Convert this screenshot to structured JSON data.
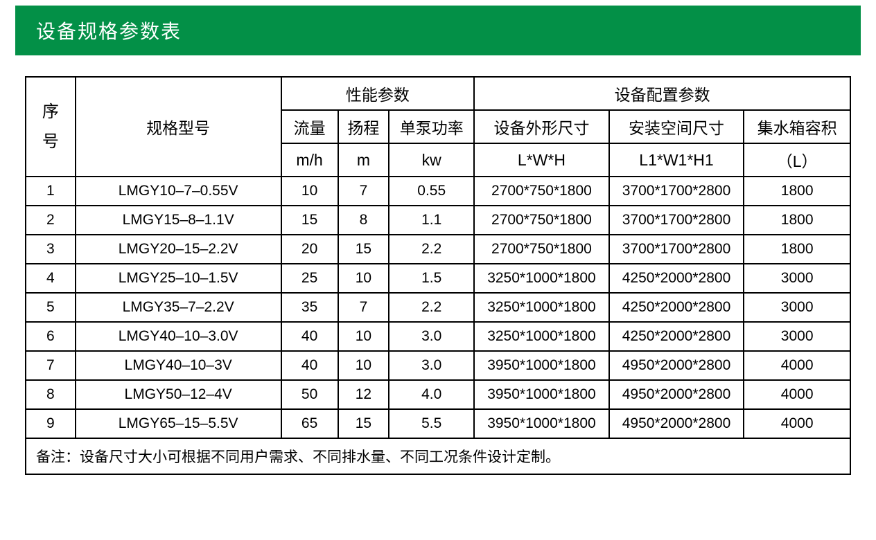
{
  "title": "设备规格参数表",
  "headers": {
    "seq1": "序",
    "seq2": "号",
    "model": "规格型号",
    "perf_group": "性能参数",
    "config_group": "设备配置参数",
    "flow": "流量",
    "head": "扬程",
    "power": "单泵功率",
    "outer_size": "设备外形尺寸",
    "install_size": "安装空间尺寸",
    "tank": "集水箱容积",
    "flow_unit": "m/h",
    "head_unit": "m",
    "power_unit": "kw",
    "outer_unit": "L*W*H",
    "install_unit": "L1*W1*H1",
    "tank_unit": "（L）"
  },
  "rows": [
    {
      "seq": "1",
      "model": "LMGY10–7–0.55V",
      "flow": "10",
      "head": "7",
      "power": "0.55",
      "outer": "2700*750*1800",
      "install": "3700*1700*2800",
      "tank": "1800"
    },
    {
      "seq": "2",
      "model": "LMGY15–8–1.1V",
      "flow": "15",
      "head": "8",
      "power": "1.1",
      "outer": "2700*750*1800",
      "install": "3700*1700*2800",
      "tank": "1800"
    },
    {
      "seq": "3",
      "model": "LMGY20–15–2.2V",
      "flow": "20",
      "head": "15",
      "power": "2.2",
      "outer": "2700*750*1800",
      "install": "3700*1700*2800",
      "tank": "1800"
    },
    {
      "seq": "4",
      "model": "LMGY25–10–1.5V",
      "flow": "25",
      "head": "10",
      "power": "1.5",
      "outer": "3250*1000*1800",
      "install": "4250*2000*2800",
      "tank": "3000"
    },
    {
      "seq": "5",
      "model": "LMGY35–7–2.2V",
      "flow": "35",
      "head": "7",
      "power": "2.2",
      "outer": "3250*1000*1800",
      "install": "4250*2000*2800",
      "tank": "3000"
    },
    {
      "seq": "6",
      "model": "LMGY40–10–3.0V",
      "flow": "40",
      "head": "10",
      "power": "3.0",
      "outer": "3250*1000*1800",
      "install": "4250*2000*2800",
      "tank": "3000"
    },
    {
      "seq": "7",
      "model": "LMGY40–10–3V",
      "flow": "40",
      "head": "10",
      "power": "3.0",
      "outer": "3950*1000*1800",
      "install": "4950*2000*2800",
      "tank": "4000"
    },
    {
      "seq": "8",
      "model": "LMGY50–12–4V",
      "flow": "50",
      "head": "12",
      "power": "4.0",
      "outer": "3950*1000*1800",
      "install": "4950*2000*2800",
      "tank": "4000"
    },
    {
      "seq": "9",
      "model": "LMGY65–15–5.5V",
      "flow": "65",
      "head": "15",
      "power": "5.5",
      "outer": "3950*1000*1800",
      "install": "4950*2000*2800",
      "tank": "4000"
    }
  ],
  "footnote": "备注：设备尺寸大小可根据不同用户需求、不同排水量、不同工况条件设计定制。",
  "styling": {
    "header_bg": "#039047",
    "header_text_color": "#ffffff",
    "border_color": "#000000",
    "cell_text_color": "#000000",
    "body_bg": "#ffffff",
    "title_fontsize": 28,
    "header_fontsize": 23,
    "cell_fontsize": 21
  }
}
